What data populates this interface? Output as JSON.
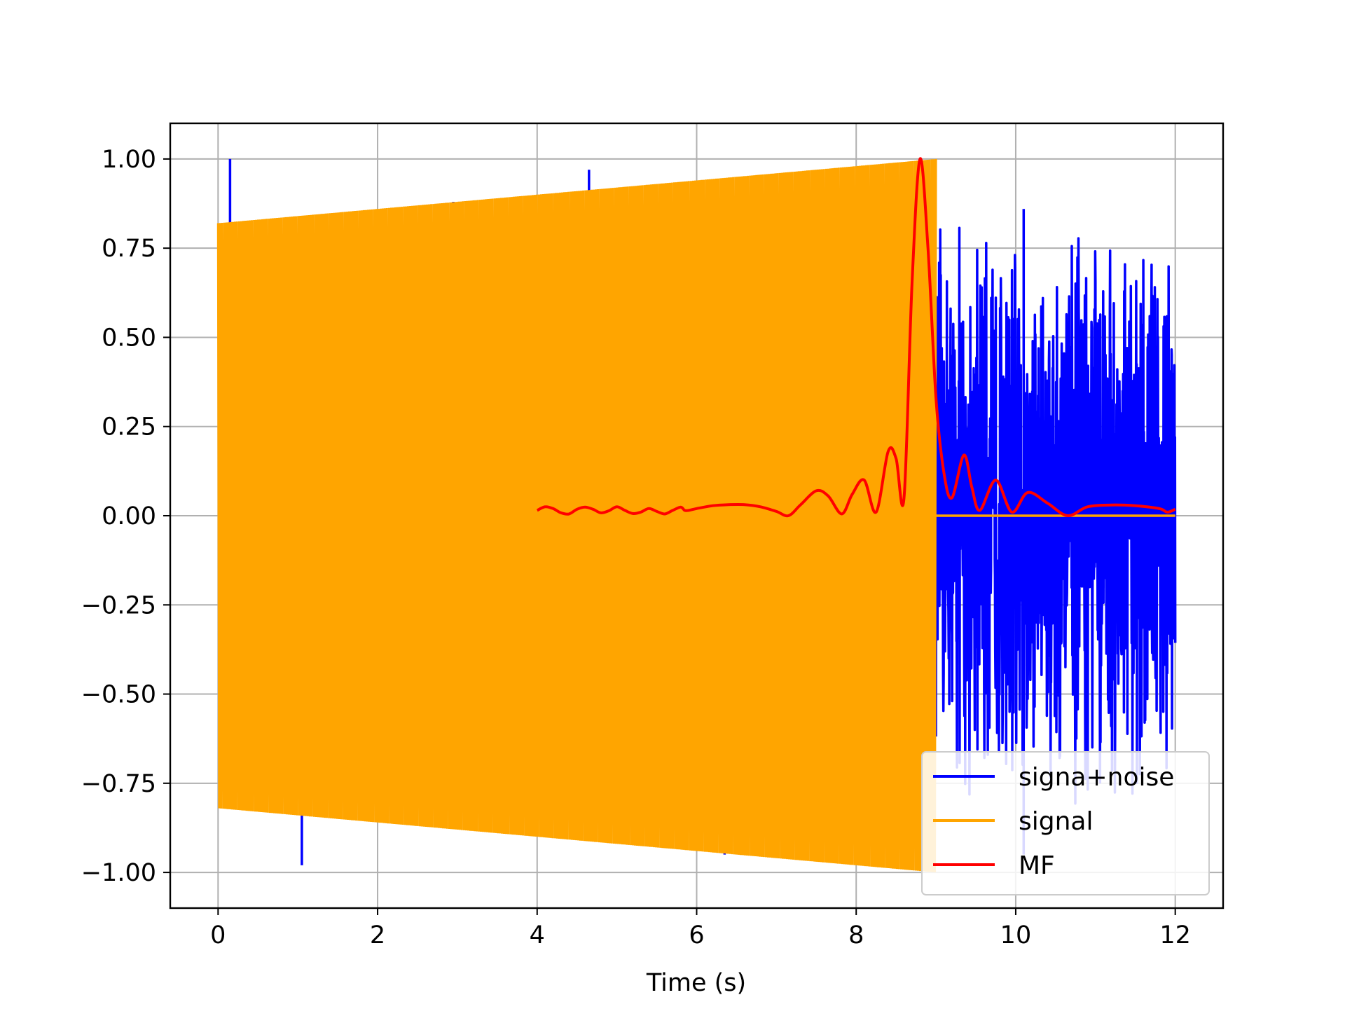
{
  "chart_data": {
    "type": "line",
    "title": "",
    "xlabel": "Time (s)",
    "ylabel": "",
    "xlim": [
      -0.6,
      12.6
    ],
    "ylim": [
      -1.1,
      1.1
    ],
    "xticks": [
      0,
      2,
      4,
      6,
      8,
      10,
      12
    ],
    "xtick_labels": [
      "0",
      "2",
      "4",
      "6",
      "8",
      "10",
      "12"
    ],
    "yticks": [
      1.0,
      0.75,
      0.5,
      0.25,
      0.0,
      -0.25,
      -0.5,
      -0.75,
      -1.0
    ],
    "ytick_labels": [
      "1.00",
      "0.75",
      "0.50",
      "0.25",
      "0.00",
      "−0.25",
      "−0.50",
      "−0.75",
      "−1.00"
    ],
    "grid": true,
    "legend_position": "lower-right",
    "series": [
      {
        "name": "signa+noise",
        "color": "#0000ff",
        "description": "noisy chirp, noise only after t=9",
        "noise_start": 9.0,
        "noise_end": 12.0,
        "noise_amplitude": 0.86,
        "spikes": [
          {
            "x": 0.15,
            "y": 1.0
          },
          {
            "x": 1.05,
            "y": -0.98
          },
          {
            "x": 2.95,
            "y": 0.88
          },
          {
            "x": 4.65,
            "y": 0.97
          },
          {
            "x": 6.35,
            "y": -0.95
          },
          {
            "x": 10.1,
            "y": 0.86
          },
          {
            "x": 10.1,
            "y": -0.95
          }
        ]
      },
      {
        "name": "signal",
        "color": "#ffa500",
        "envelope": [
          {
            "x": 0.0,
            "y": 0.82
          },
          {
            "x": 9.0,
            "y": 1.0
          }
        ],
        "signal_end": 9.0,
        "zero_until": 12.0
      },
      {
        "name": "MF",
        "color": "#ff0000",
        "x": [
          4.0,
          4.1,
          4.2,
          4.3,
          4.4,
          4.5,
          4.6,
          4.7,
          4.8,
          4.9,
          5.0,
          5.1,
          5.2,
          5.3,
          5.4,
          5.5,
          5.6,
          5.7,
          5.8,
          5.85,
          5.9,
          6.0,
          6.2,
          6.4,
          6.6,
          6.8,
          7.0,
          7.15,
          7.3,
          7.5,
          7.65,
          7.82,
          7.95,
          8.1,
          8.25,
          8.4,
          8.5,
          8.6,
          8.7,
          8.8,
          8.9,
          9.0,
          9.1,
          9.2,
          9.35,
          9.45,
          9.55,
          9.75,
          9.95,
          10.15,
          10.4,
          10.65,
          10.9,
          11.2,
          11.5,
          11.8,
          11.9,
          12.0
        ],
        "y": [
          0.015,
          0.025,
          0.02,
          0.008,
          0.005,
          0.018,
          0.024,
          0.018,
          0.008,
          0.014,
          0.025,
          0.015,
          0.006,
          0.01,
          0.02,
          0.012,
          0.005,
          0.015,
          0.024,
          0.015,
          0.015,
          0.02,
          0.028,
          0.031,
          0.031,
          0.025,
          0.012,
          0.0,
          0.03,
          0.07,
          0.055,
          0.005,
          0.06,
          0.1,
          0.01,
          0.18,
          0.16,
          0.05,
          0.65,
          1.0,
          0.75,
          0.33,
          0.12,
          0.05,
          0.17,
          0.08,
          0.015,
          0.1,
          0.01,
          0.065,
          0.035,
          0.0,
          0.025,
          0.03,
          0.028,
          0.02,
          0.01,
          0.018
        ]
      }
    ]
  }
}
